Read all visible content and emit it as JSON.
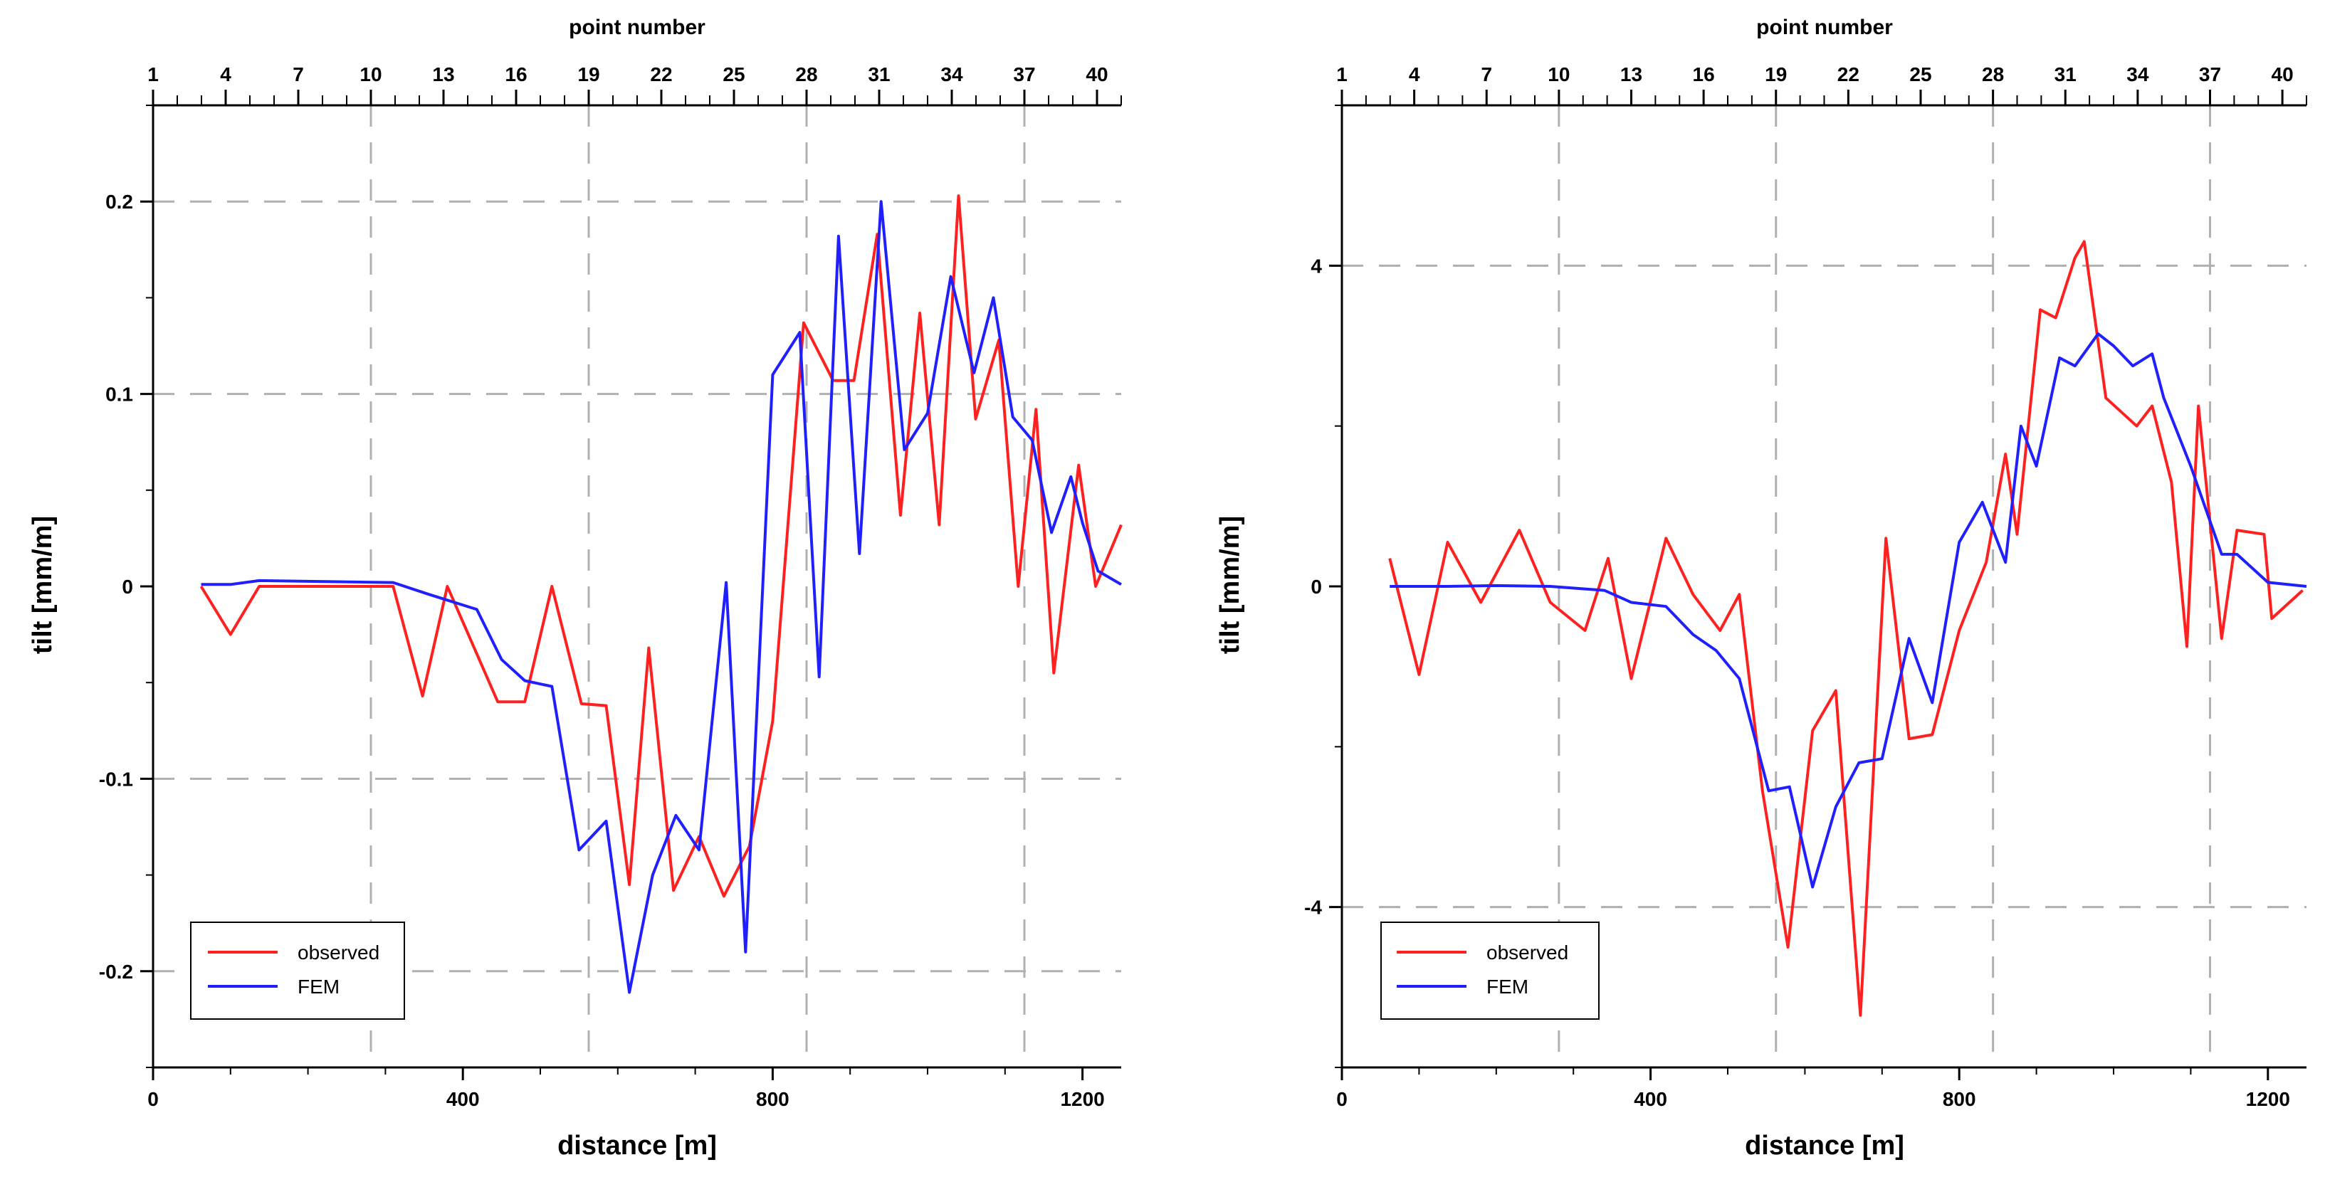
{
  "chart_data": [
    {
      "type": "line",
      "xlabel": "distance [m]",
      "ylabel": "tilt [mm/m]",
      "top_axis_label": "point number",
      "xlim": [
        0,
        1250
      ],
      "ylim": [
        -0.25,
        0.25
      ],
      "x_ticks": [
        0,
        400,
        800,
        1200
      ],
      "x_tick_labels": [
        "0",
        "400",
        "800",
        "1200"
      ],
      "y_ticks": [
        -0.2,
        -0.1,
        0,
        0.1,
        0.2
      ],
      "y_tick_labels": [
        "-0.2",
        "-0.1",
        "0",
        "0.1",
        "0.2"
      ],
      "top_ticks": [
        1,
        4,
        7,
        10,
        13,
        16,
        19,
        22,
        25,
        28,
        31,
        34,
        37,
        40
      ],
      "top_tick_labels": [
        "1",
        "4",
        "7",
        "10",
        "13",
        "16",
        "19",
        "22",
        "25",
        "28",
        "31",
        "34",
        "37",
        "40"
      ],
      "point_range": [
        1,
        41
      ],
      "grid_x_points": [
        10,
        19,
        28,
        37
      ],
      "grid_y": [
        -0.2,
        -0.1,
        0.1,
        0.2
      ],
      "legend": {
        "position": "bottom-left",
        "entries": [
          "observed",
          "FEM"
        ]
      },
      "series": [
        {
          "name": "observed",
          "color": "#ff2020",
          "x": [
            62,
            100,
            137,
            310,
            348,
            380,
            445,
            480,
            515,
            553,
            585,
            615,
            640,
            672,
            705,
            737,
            770,
            800,
            840,
            878,
            905,
            935,
            965,
            990,
            1015,
            1040,
            1062,
            1092,
            1117,
            1140,
            1163,
            1195,
            1217,
            1250
          ],
          "values": [
            0,
            -0.025,
            0,
            0,
            -0.057,
            0,
            -0.06,
            -0.06,
            0,
            -0.061,
            -0.062,
            -0.155,
            -0.032,
            -0.158,
            -0.13,
            -0.161,
            -0.135,
            -0.07,
            0.137,
            0.107,
            0.107,
            0.183,
            0.037,
            0.142,
            0.032,
            0.203,
            0.087,
            0.128,
            0,
            0.092,
            -0.045,
            0.063,
            0,
            0.032
          ]
        },
        {
          "name": "FEM",
          "color": "#2020ff",
          "x": [
            62,
            100,
            137,
            310,
            355,
            418,
            450,
            480,
            515,
            550,
            585,
            615,
            645,
            675,
            705,
            740,
            765,
            800,
            835,
            860,
            885,
            912,
            940,
            970,
            1000,
            1030,
            1060,
            1085,
            1110,
            1135,
            1160,
            1185,
            1200,
            1220,
            1250
          ],
          "values": [
            0.001,
            0.001,
            0.003,
            0.002,
            -0.004,
            -0.012,
            -0.038,
            -0.049,
            -0.052,
            -0.137,
            -0.122,
            -0.211,
            -0.15,
            -0.119,
            -0.137,
            0.002,
            -0.19,
            0.11,
            0.132,
            -0.047,
            0.182,
            0.017,
            0.2,
            0.071,
            0.09,
            0.161,
            0.111,
            0.15,
            0.088,
            0.076,
            0.028,
            0.057,
            0.033,
            0.008,
            0.001
          ]
        }
      ]
    },
    {
      "type": "line",
      "xlabel": "distance [m]",
      "ylabel": "tilt [mm/m]",
      "top_axis_label": "point number",
      "xlim": [
        0,
        1250
      ],
      "ylim": [
        -6,
        6
      ],
      "x_ticks": [
        0,
        400,
        800,
        1200
      ],
      "x_tick_labels": [
        "0",
        "400",
        "800",
        "1200"
      ],
      "y_ticks": [
        -4,
        0,
        4
      ],
      "y_tick_labels": [
        "-4",
        "0",
        "4"
      ],
      "top_ticks": [
        1,
        4,
        7,
        10,
        13,
        16,
        19,
        22,
        25,
        28,
        31,
        34,
        37,
        40
      ],
      "top_tick_labels": [
        "1",
        "4",
        "7",
        "10",
        "13",
        "16",
        "19",
        "22",
        "25",
        "28",
        "31",
        "34",
        "37",
        "40"
      ],
      "point_range": [
        1,
        41
      ],
      "grid_x_points": [
        10,
        19,
        28,
        37
      ],
      "grid_y": [
        -4,
        4
      ],
      "legend": {
        "position": "bottom-left",
        "entries": [
          "observed",
          "FEM"
        ]
      },
      "series": [
        {
          "name": "observed",
          "color": "#ff2020",
          "x": [
            62,
            100,
            137,
            180,
            230,
            270,
            315,
            345,
            375,
            420,
            455,
            490,
            515,
            545,
            578,
            610,
            640,
            672,
            705,
            735,
            765,
            800,
            835,
            860,
            875,
            905,
            925,
            950,
            962,
            990,
            1030,
            1050,
            1075,
            1095,
            1110,
            1140,
            1160,
            1195,
            1205,
            1245
          ],
          "values": [
            0.35,
            -1.1,
            0.55,
            -0.2,
            0.7,
            -0.2,
            -0.55,
            0.35,
            -1.15,
            0.6,
            -0.1,
            -0.55,
            -0.1,
            -2.55,
            -4.5,
            -1.8,
            -1.3,
            -5.35,
            0.6,
            -1.9,
            -1.85,
            -0.55,
            0.3,
            1.65,
            0.65,
            3.45,
            3.35,
            4.1,
            4.3,
            2.35,
            2.0,
            2.25,
            1.3,
            -0.75,
            2.25,
            -0.65,
            0.7,
            0.65,
            -0.4,
            -0.05
          ]
        },
        {
          "name": "FEM",
          "color": "#2020ff",
          "x": [
            62,
            137,
            200,
            270,
            340,
            375,
            420,
            455,
            485,
            515,
            553,
            580,
            610,
            640,
            670,
            700,
            735,
            765,
            800,
            830,
            860,
            880,
            900,
            930,
            950,
            980,
            1000,
            1025,
            1050,
            1065,
            1100,
            1140,
            1160,
            1200,
            1250
          ],
          "values": [
            0,
            0,
            0.01,
            0,
            -0.05,
            -0.2,
            -0.25,
            -0.6,
            -0.8,
            -1.15,
            -2.55,
            -2.5,
            -3.75,
            -2.75,
            -2.2,
            -2.15,
            -0.65,
            -1.45,
            0.55,
            1.05,
            0.3,
            2.0,
            1.5,
            2.85,
            2.75,
            3.15,
            3.0,
            2.75,
            2.9,
            2.35,
            1.5,
            0.4,
            0.4,
            0.05,
            0.0
          ]
        }
      ]
    }
  ]
}
